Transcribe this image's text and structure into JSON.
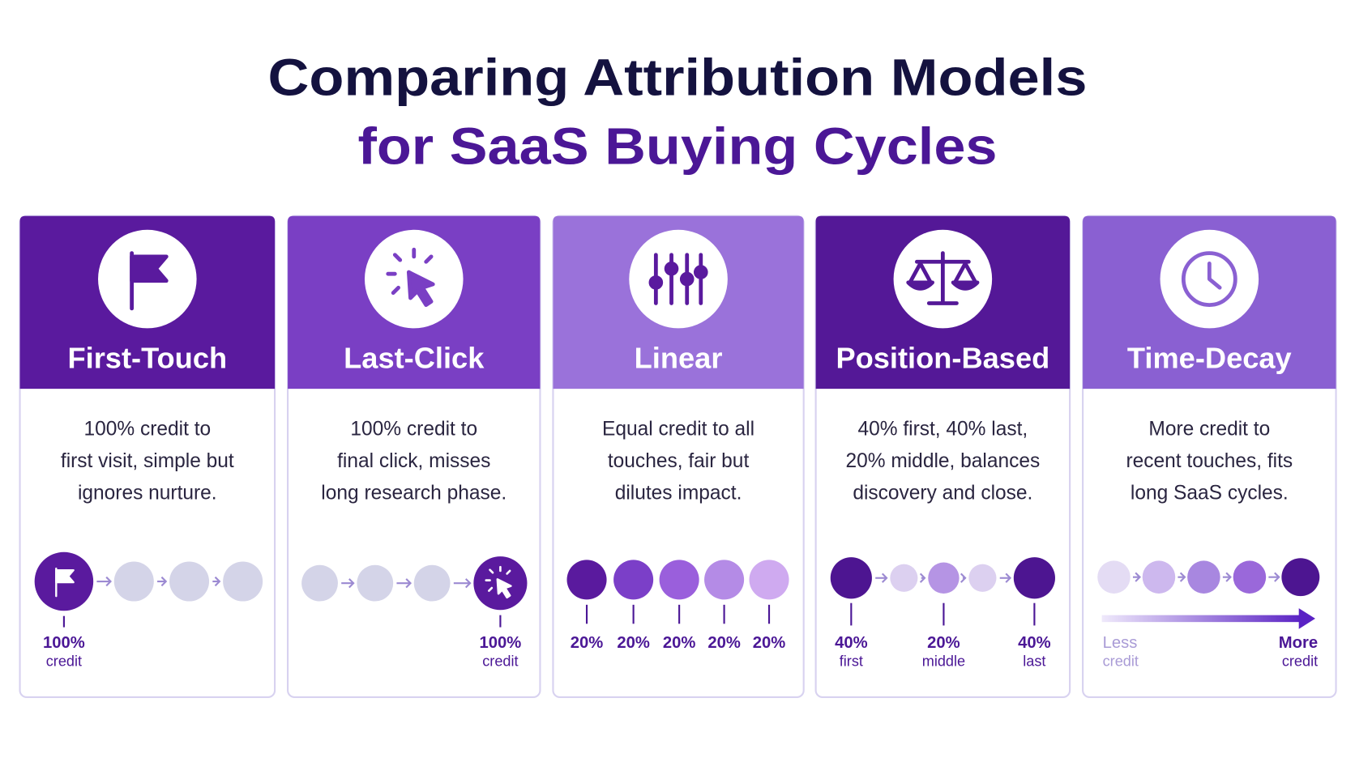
{
  "title": {
    "line1": "Comparing Attribution Models",
    "line2": "for SaaS Buying Cycles"
  },
  "cards": [
    {
      "name": "First-Touch",
      "description": [
        "100% credit to",
        "first visit, simple but",
        "ignores nurture."
      ],
      "labels": [
        {
          "value": "100%",
          "caption": "credit"
        }
      ]
    },
    {
      "name": "Last-Click",
      "description": [
        "100% credit to",
        "final click, misses",
        "long research phase."
      ],
      "labels": [
        {
          "value": "100%",
          "caption": "credit"
        }
      ]
    },
    {
      "name": "Linear",
      "description": [
        "Equal credit to all",
        "touches, fair but",
        "dilutes impact."
      ],
      "labels": [
        {
          "value": "20%"
        },
        {
          "value": "20%"
        },
        {
          "value": "20%"
        },
        {
          "value": "20%"
        },
        {
          "value": "20%"
        }
      ]
    },
    {
      "name": "Position-Based",
      "description": [
        "40% first, 40% last,",
        "20% middle, balances",
        "discovery and close."
      ],
      "labels": [
        {
          "value": "40%",
          "caption": "first"
        },
        {
          "value": "20%",
          "caption": "middle"
        },
        {
          "value": "40%",
          "caption": "last"
        }
      ]
    },
    {
      "name": "Time-Decay",
      "description": [
        "More credit to",
        "recent touches, fits",
        "long SaaS cycles."
      ],
      "labels": [
        {
          "value": "Less",
          "caption": "credit"
        },
        {
          "value": "More",
          "caption": "credit"
        }
      ]
    }
  ]
}
